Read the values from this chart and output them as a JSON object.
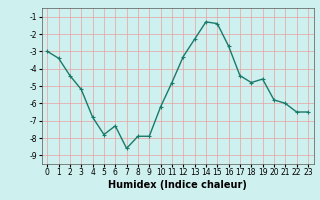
{
  "x": [
    0,
    1,
    2,
    3,
    4,
    5,
    6,
    7,
    8,
    9,
    10,
    11,
    12,
    13,
    14,
    15,
    16,
    17,
    18,
    19,
    20,
    21,
    22,
    23
  ],
  "y": [
    -3,
    -3.4,
    -4.4,
    -5.2,
    -6.8,
    -7.8,
    -7.3,
    -8.6,
    -7.9,
    -7.9,
    -6.2,
    -4.8,
    -3.3,
    -2.3,
    -1.3,
    -1.4,
    -2.7,
    -4.4,
    -4.8,
    -4.6,
    -5.8,
    -6.0,
    -6.5,
    -6.5
  ],
  "line_color": "#1a7a6a",
  "marker": "+",
  "marker_size": 3,
  "linewidth": 1.0,
  "xlabel": "Humidex (Indice chaleur)",
  "xlabel_fontsize": 7,
  "background_color": "#cef0ee",
  "grid_color": "#e8a0a0",
  "xlim": [
    -0.5,
    23.5
  ],
  "ylim": [
    -9.5,
    -0.5
  ],
  "yticks": [
    -9,
    -8,
    -7,
    -6,
    -5,
    -4,
    -3,
    -2,
    -1
  ],
  "xticks": [
    0,
    1,
    2,
    3,
    4,
    5,
    6,
    7,
    8,
    9,
    10,
    11,
    12,
    13,
    14,
    15,
    16,
    17,
    18,
    19,
    20,
    21,
    22,
    23
  ],
  "tick_fontsize": 5.5
}
